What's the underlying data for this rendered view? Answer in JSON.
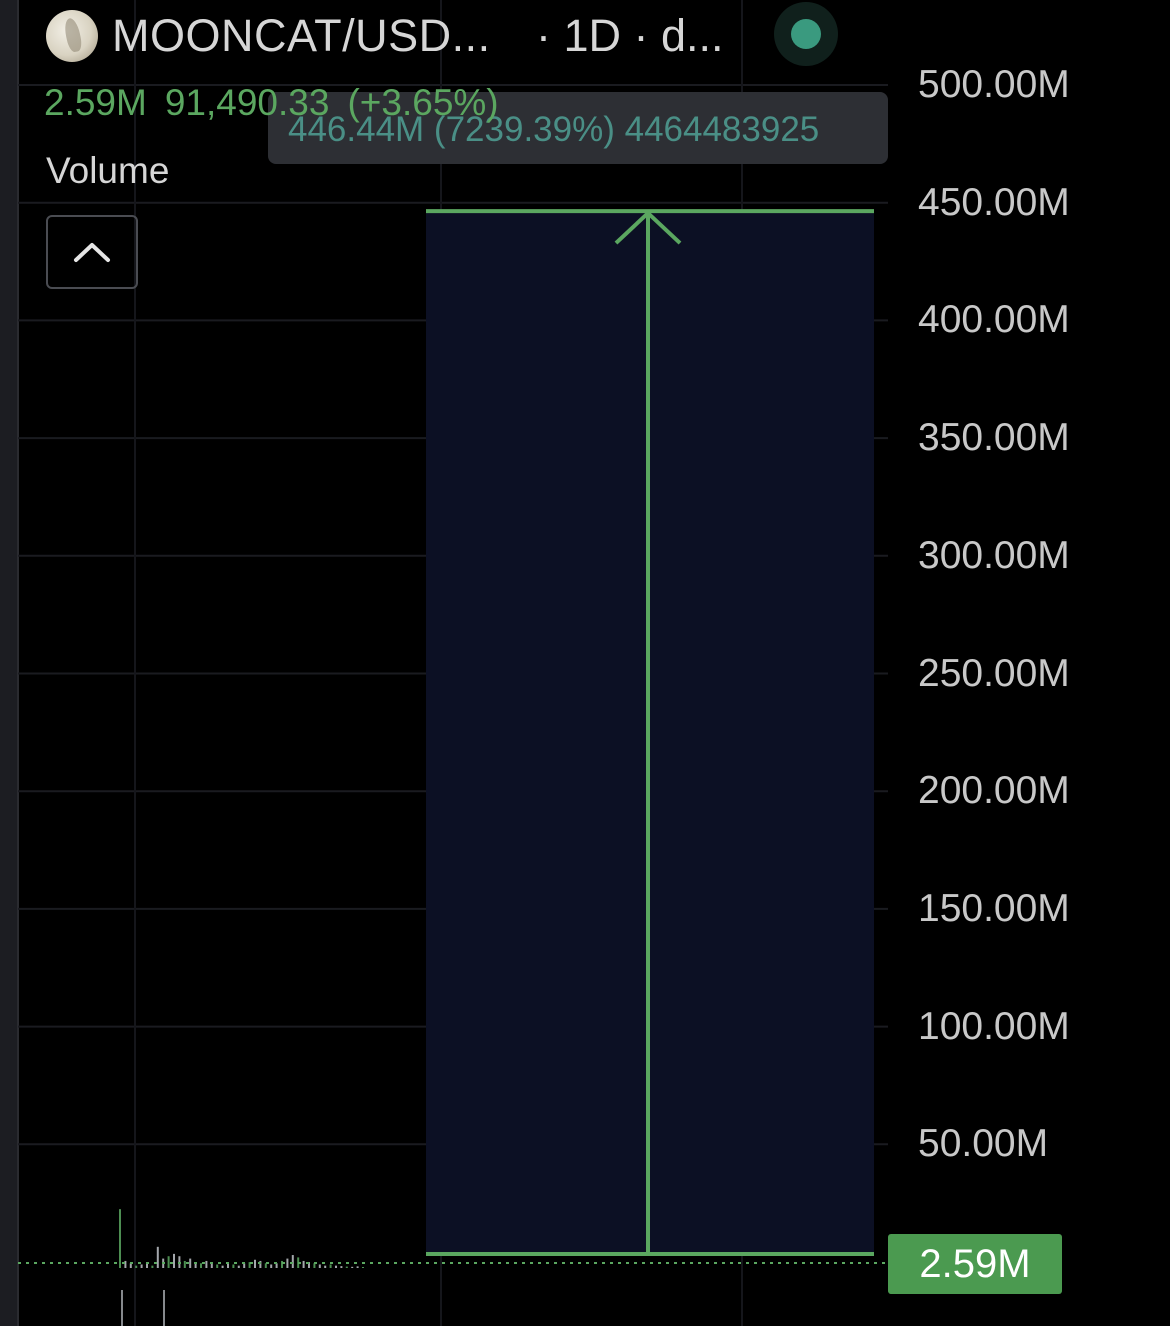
{
  "header": {
    "symbol": "MOONCAT/USD...",
    "interval": "· 1D · d...",
    "logo_icon": "mooncat-logo",
    "status_color": "#3a9a7f"
  },
  "legend": {
    "volume_value": "2.59M",
    "price": "91,490.33",
    "change": "(+3.65%)",
    "color": "#5ba760"
  },
  "pane": {
    "label": "Volume",
    "collapse_icon": "chevron-up-icon"
  },
  "measure": {
    "label": "446.44M (7239.39%) 4464483925"
  },
  "price_tag": {
    "value": "2.59M",
    "color": "#4b9a50"
  },
  "chart_data": {
    "type": "bar",
    "title": "",
    "ylabel": "",
    "ylim": [
      0,
      520000000
    ],
    "y_ticks": [
      "500.00M",
      "450.00M",
      "400.00M",
      "350.00M",
      "300.00M",
      "250.00M",
      "200.00M",
      "150.00M",
      "100.00M",
      "50.00M"
    ],
    "y_tick_values": [
      500000000,
      450000000,
      400000000,
      350000000,
      300000000,
      250000000,
      200000000,
      150000000,
      100000000,
      50000000
    ],
    "current_value": 2590000,
    "measure_range": {
      "from": 0,
      "to": 446440000,
      "color": "#5ba760",
      "fill": "#0c1024"
    },
    "volume_bars": [
      25000000,
      3000000,
      2000000,
      1000000,
      1500000,
      2500000,
      1000000,
      9000000,
      4000000,
      5000000,
      6000000,
      5000000,
      3000000,
      4000000,
      2500000,
      2000000,
      3000000,
      2000000,
      1500000,
      1000000,
      2000000,
      1500000,
      1000000,
      2000000,
      2500000,
      3500000,
      3000000,
      2000000,
      1500000,
      2000000,
      3000000,
      4000000,
      5500000,
      4500000,
      3000000,
      2500000,
      2000000,
      1500000,
      1000000,
      1500000,
      1000000,
      800000,
      600000,
      500000,
      700000,
      400000
    ]
  }
}
